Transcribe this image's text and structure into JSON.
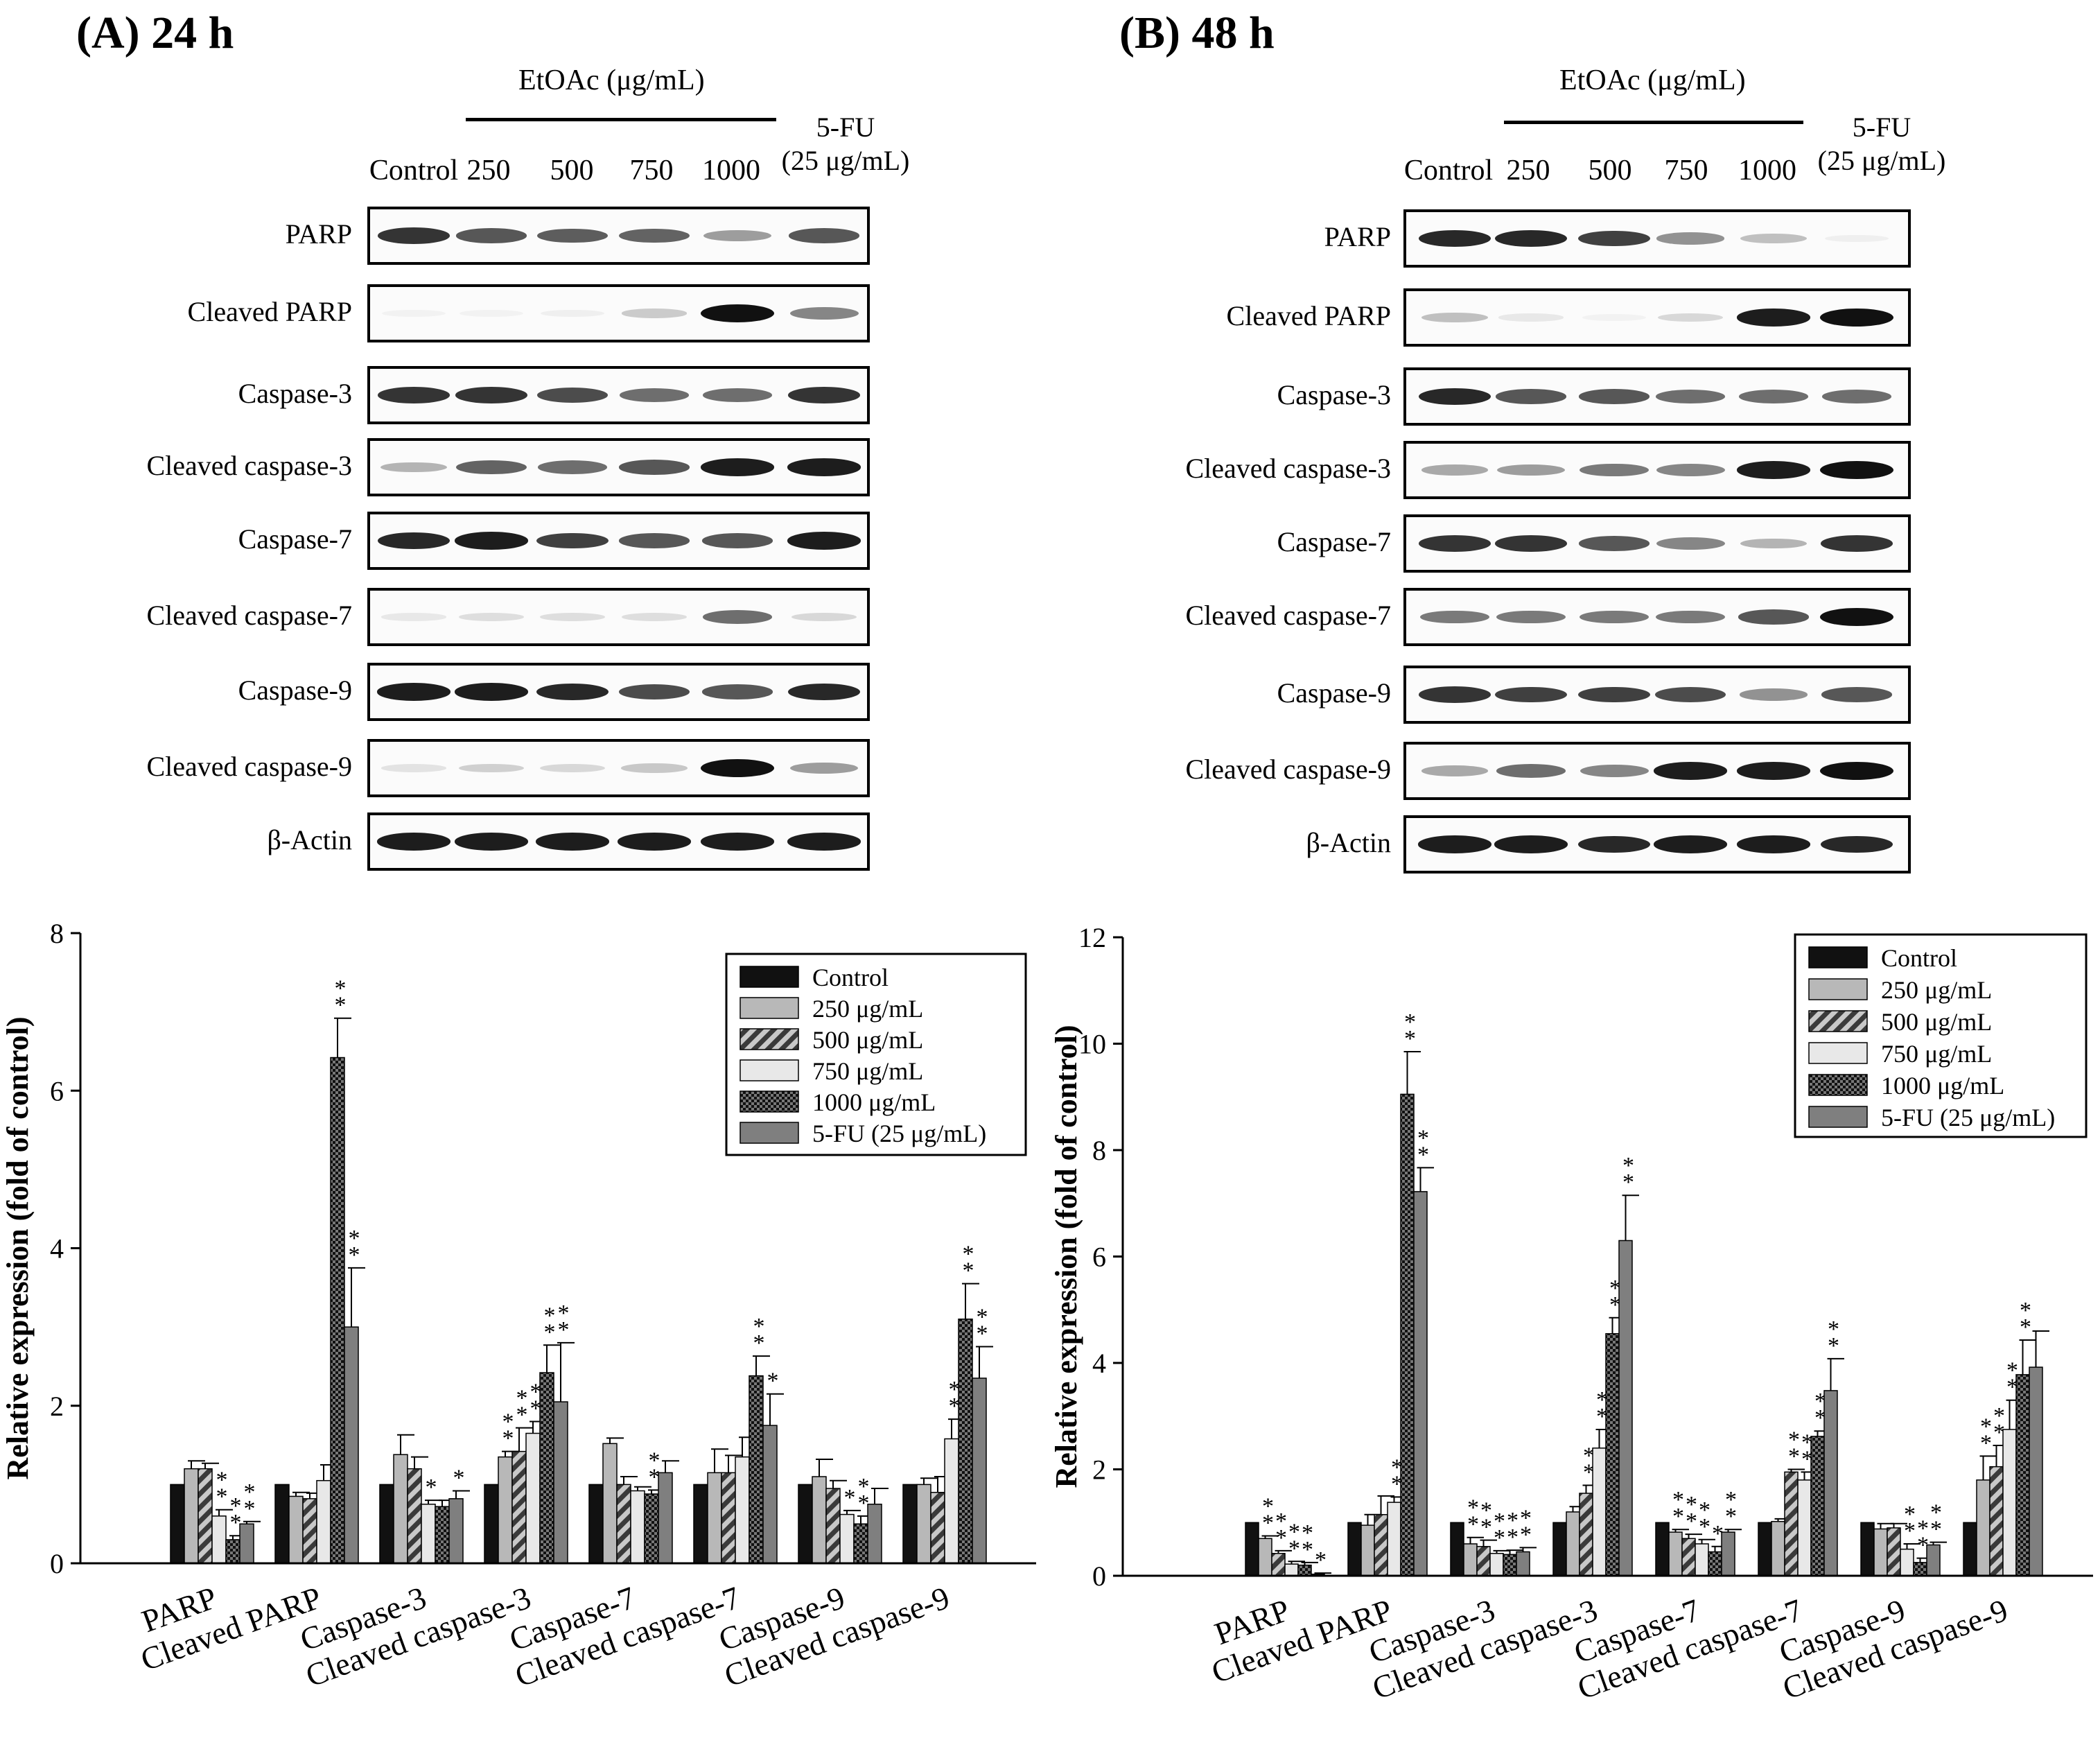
{
  "panels": [
    {
      "title": "(A) 24 h",
      "treatment_label": "EtOAc (μg/mL)",
      "lanes": [
        "Control",
        "250",
        "500",
        "750",
        "1000"
      ],
      "positive_control": [
        "5-FU",
        "(25 μg/mL)"
      ],
      "blots": [
        {
          "label": "PARP",
          "intensities": [
            0.85,
            0.7,
            0.68,
            0.65,
            0.4,
            0.7
          ]
        },
        {
          "label": "Cleaved PARP",
          "intensities": [
            0.04,
            0.04,
            0.05,
            0.2,
            1.0,
            0.5
          ]
        },
        {
          "label": "Caspase-3",
          "intensities": [
            0.85,
            0.85,
            0.75,
            0.6,
            0.6,
            0.85
          ]
        },
        {
          "label": "Cleaved caspase-3",
          "intensities": [
            0.3,
            0.65,
            0.6,
            0.7,
            0.95,
            0.95
          ]
        },
        {
          "label": "Caspase-7",
          "intensities": [
            0.9,
            0.95,
            0.8,
            0.7,
            0.7,
            0.95
          ]
        },
        {
          "label": "Cleaved caspase-7",
          "intensities": [
            0.08,
            0.12,
            0.12,
            0.12,
            0.6,
            0.15
          ]
        },
        {
          "label": "Caspase-9",
          "intensities": [
            0.95,
            0.95,
            0.9,
            0.75,
            0.7,
            0.9
          ]
        },
        {
          "label": "Cleaved caspase-9",
          "intensities": [
            0.1,
            0.18,
            0.15,
            0.22,
            1.0,
            0.4
          ]
        },
        {
          "label": "β-Actin",
          "intensities": [
            0.95,
            0.95,
            0.95,
            0.95,
            0.95,
            0.95
          ]
        }
      ]
    },
    {
      "title": "(B) 48 h",
      "treatment_label": "EtOAc (μg/mL)",
      "lanes": [
        "Control",
        "250",
        "500",
        "750",
        "1000"
      ],
      "positive_control": [
        "5-FU",
        "(25 μg/mL)"
      ],
      "blots": [
        {
          "label": "PARP",
          "intensities": [
            0.9,
            0.9,
            0.8,
            0.45,
            0.25,
            0.05
          ]
        },
        {
          "label": "Cleaved PARP",
          "intensities": [
            0.25,
            0.08,
            0.04,
            0.15,
            0.95,
            1.0
          ]
        },
        {
          "label": "Caspase-3",
          "intensities": [
            0.9,
            0.7,
            0.7,
            0.6,
            0.6,
            0.6
          ]
        },
        {
          "label": "Cleaved caspase-3",
          "intensities": [
            0.35,
            0.4,
            0.55,
            0.5,
            0.95,
            1.0
          ]
        },
        {
          "label": "Caspase-7",
          "intensities": [
            0.85,
            0.85,
            0.7,
            0.5,
            0.3,
            0.85
          ]
        },
        {
          "label": "Cleaved caspase-7",
          "intensities": [
            0.55,
            0.55,
            0.55,
            0.55,
            0.7,
            1.0
          ]
        },
        {
          "label": "Caspase-9",
          "intensities": [
            0.85,
            0.8,
            0.8,
            0.75,
            0.45,
            0.7
          ]
        },
        {
          "label": "Cleaved caspase-9",
          "intensities": [
            0.35,
            0.6,
            0.5,
            0.95,
            0.95,
            1.0
          ]
        },
        {
          "label": "β-Actin",
          "intensities": [
            0.95,
            0.95,
            0.9,
            0.95,
            0.95,
            0.9
          ]
        }
      ]
    }
  ],
  "chart_data": [
    {
      "type": "bar",
      "title": "(A) 24 h",
      "xlabel": "",
      "ylabel": "Relative expression (fold of control)",
      "ylim": [
        0,
        8
      ],
      "yticks": [
        "0",
        "2",
        "4",
        "6",
        "8"
      ],
      "categories": [
        "PARP",
        "Cleaved PARP",
        "Caspase-3",
        "Cleaved caspase-3",
        "Caspase-7",
        "Cleaved caspase-7",
        "Caspase-9",
        "Cleaved caspase-9"
      ],
      "legend": "top-right",
      "series": [
        {
          "name": "Control",
          "color": "#111111",
          "pattern": "solid-dark",
          "values": [
            1.0,
            1.0,
            1.0,
            1.0,
            1.0,
            1.0,
            1.0,
            1.0
          ],
          "errors": [
            0,
            0,
            0,
            0,
            0,
            0,
            0,
            0
          ],
          "stars": [
            "",
            "",
            "",
            "",
            "",
            "",
            "",
            ""
          ]
        },
        {
          "name": "250 μg/mL",
          "color": "#b8b8b8",
          "pattern": "light-gray",
          "values": [
            1.2,
            0.85,
            1.38,
            1.35,
            1.52,
            1.15,
            1.1,
            1.0
          ],
          "errors": [
            0.1,
            0.05,
            0.25,
            0.07,
            0.07,
            0.3,
            0.22,
            0.08
          ],
          "stars": [
            "",
            "",
            "",
            "**",
            "",
            "",
            "",
            ""
          ]
        },
        {
          "name": "500 μg/mL",
          "color": "#555555",
          "pattern": "diagonal",
          "values": [
            1.2,
            0.82,
            1.2,
            1.42,
            1.0,
            1.15,
            0.95,
            0.9
          ],
          "errors": [
            0.07,
            0.07,
            0.15,
            0.3,
            0.1,
            0.22,
            0.1,
            0.2
          ],
          "stars": [
            "",
            "",
            "",
            "**",
            "",
            "",
            "",
            ""
          ]
        },
        {
          "name": "750 μg/mL",
          "color": "#e8e8e8",
          "pattern": "very-light",
          "values": [
            0.6,
            1.05,
            0.75,
            1.65,
            0.92,
            1.35,
            0.62,
            1.58
          ],
          "errors": [
            0.08,
            0.2,
            0.05,
            0.15,
            0.05,
            0.25,
            0.05,
            0.25
          ],
          "stars": [
            "**",
            "",
            "*",
            "**",
            "",
            "",
            "*",
            "**"
          ]
        },
        {
          "name": "1000 μg/mL",
          "color": "#222222",
          "pattern": "checker",
          "values": [
            0.3,
            6.42,
            0.72,
            2.42,
            0.88,
            2.38,
            0.5,
            3.1
          ],
          "errors": [
            0.05,
            0.5,
            0.08,
            0.35,
            0.05,
            0.25,
            0.1,
            0.45
          ],
          "stars": [
            "**",
            "**",
            "",
            "**",
            "**",
            "**",
            "**",
            "**"
          ]
        },
        {
          "name": "5-FU (25 μg/mL)",
          "color": "#7f7f7f",
          "pattern": "mid-gray",
          "values": [
            0.5,
            3.0,
            0.82,
            2.05,
            1.15,
            1.75,
            0.75,
            2.35
          ],
          "errors": [
            0.03,
            0.75,
            0.1,
            0.75,
            0.15,
            0.4,
            0.2,
            0.4
          ],
          "stars": [
            "**",
            "**",
            "*",
            "**",
            "",
            "*",
            "",
            "**"
          ]
        }
      ]
    },
    {
      "type": "bar",
      "title": "(B) 48 h",
      "xlabel": "",
      "ylabel": "Relative expression (fold of control)",
      "ylim": [
        0,
        12
      ],
      "yticks": [
        "0",
        "2",
        "4",
        "6",
        "8",
        "10",
        "12"
      ],
      "categories": [
        "PARP",
        "Cleaved PARP",
        "Caspase-3",
        "Cleaved caspase-3",
        "Caspase-7",
        "Cleaved caspase-7",
        "Caspase-9",
        "Cleaved caspase-9"
      ],
      "legend": "top-right",
      "series": [
        {
          "name": "Control",
          "color": "#111111",
          "pattern": "solid-dark",
          "values": [
            1.0,
            1.0,
            1.0,
            1.0,
            1.0,
            1.0,
            1.0,
            1.0
          ],
          "errors": [
            0,
            0,
            0,
            0,
            0,
            0,
            0,
            0
          ],
          "stars": [
            "",
            "",
            "",
            "",
            "",
            "",
            "",
            ""
          ]
        },
        {
          "name": "250 μg/mL",
          "color": "#b8b8b8",
          "pattern": "light-gray",
          "values": [
            0.7,
            0.95,
            0.6,
            1.2,
            0.82,
            1.02,
            0.88,
            1.8
          ],
          "errors": [
            0.05,
            0.2,
            0.12,
            0.1,
            0.05,
            0.05,
            0.1,
            0.45
          ],
          "stars": [
            "**",
            "",
            "**",
            "",
            "**",
            "",
            "",
            "**"
          ]
        },
        {
          "name": "500 μg/mL",
          "color": "#555555",
          "pattern": "diagonal",
          "values": [
            0.42,
            1.15,
            0.55,
            1.55,
            0.7,
            1.95,
            0.9,
            2.05
          ],
          "errors": [
            0.05,
            0.35,
            0.12,
            0.15,
            0.08,
            0.05,
            0.08,
            0.4
          ],
          "stars": [
            "**",
            "",
            "**",
            "**",
            "**",
            "**",
            "",
            "**"
          ]
        },
        {
          "name": "750 μg/mL",
          "color": "#e8e8e8",
          "pattern": "very-light",
          "values": [
            0.22,
            1.38,
            0.42,
            2.4,
            0.6,
            1.8,
            0.5,
            2.75
          ],
          "errors": [
            0.05,
            0.1,
            0.05,
            0.35,
            0.08,
            0.15,
            0.1,
            0.55
          ],
          "stars": [
            "**",
            "**",
            "**",
            "**",
            "**",
            "**",
            "**",
            "**"
          ]
        },
        {
          "name": "1000 μg/mL",
          "color": "#222222",
          "pattern": "checker",
          "values": [
            0.2,
            9.05,
            0.4,
            4.55,
            0.45,
            2.62,
            0.25,
            3.78
          ],
          "errors": [
            0.05,
            0.8,
            0.08,
            0.3,
            0.1,
            0.1,
            0.08,
            0.65
          ],
          "stars": [
            "**",
            "**",
            "**",
            "**",
            "*",
            "**",
            "**",
            "**"
          ]
        },
        {
          "name": "5-FU (25 μg/mL)",
          "color": "#7f7f7f",
          "pattern": "mid-gray",
          "values": [
            0.03,
            7.22,
            0.45,
            6.3,
            0.82,
            3.48,
            0.58,
            3.92
          ],
          "errors": [
            0.02,
            0.45,
            0.08,
            0.85,
            0.05,
            0.6,
            0.05,
            0.68
          ],
          "stars": [
            "*",
            "**",
            "**",
            "**",
            "**",
            "**",
            "**",
            ""
          ]
        }
      ]
    }
  ]
}
